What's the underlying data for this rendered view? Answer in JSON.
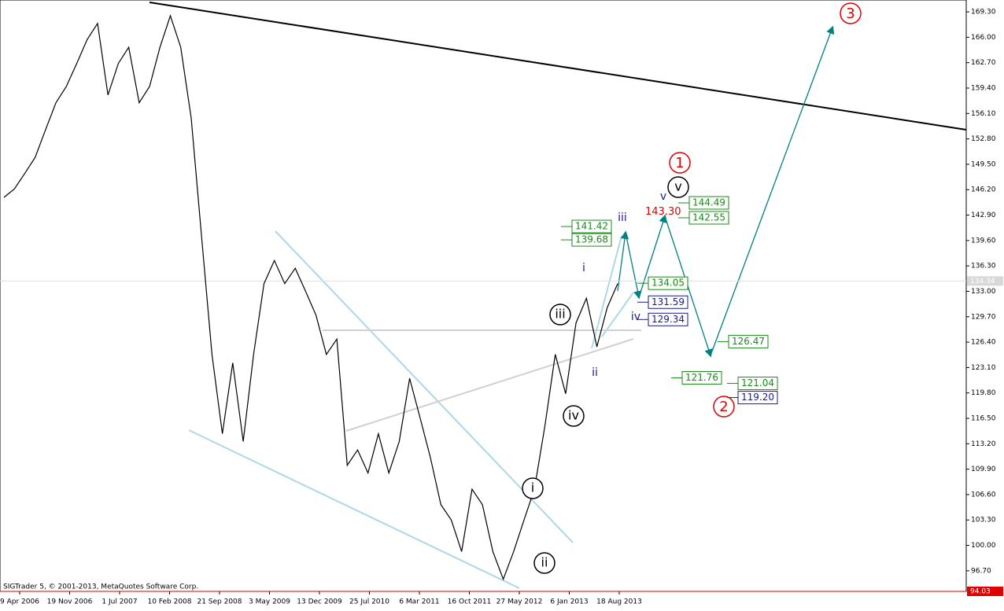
{
  "chart_data": {
    "type": "line",
    "ylim": [
      94.03,
      170.84
    ],
    "yticks": [
      {
        "value": 169.3,
        "label": "169.30"
      },
      {
        "value": 166.0,
        "label": "166.00"
      },
      {
        "value": 162.7,
        "label": "162.70"
      },
      {
        "value": 159.4,
        "label": "159.40"
      },
      {
        "value": 156.1,
        "label": "156.10"
      },
      {
        "value": 152.8,
        "label": "152.80"
      },
      {
        "value": 149.5,
        "label": "149.50"
      },
      {
        "value": 146.2,
        "label": "146.20"
      },
      {
        "value": 142.9,
        "label": "142.90"
      },
      {
        "value": 139.6,
        "label": "139.60"
      },
      {
        "value": 136.3,
        "label": "136.30"
      },
      {
        "value": 133.0,
        "label": "133.00"
      },
      {
        "value": 129.7,
        "label": "129.70"
      },
      {
        "value": 126.4,
        "label": "126.40"
      },
      {
        "value": 123.1,
        "label": "123.10"
      },
      {
        "value": 119.8,
        "label": "119.80"
      },
      {
        "value": 116.5,
        "label": "116.50"
      },
      {
        "value": 113.2,
        "label": "113.20"
      },
      {
        "value": 109.9,
        "label": "109.90"
      },
      {
        "value": 106.6,
        "label": "106.60"
      },
      {
        "value": 103.3,
        "label": "103.30"
      },
      {
        "value": 100.0,
        "label": "100.00"
      },
      {
        "value": 96.7,
        "label": "96.70"
      }
    ],
    "categories": [
      "9 Apr 2006",
      "19 Nov 2006",
      "1 Jul 2007",
      "10 Feb 2008",
      "21 Sep 2008",
      "3 May 2009",
      "13 Dec 2009",
      "25 Jul 2010",
      "6 Mar 2011",
      "16 Oct 2011",
      "27 May 2012",
      "6 Jan 2013",
      "18 Aug 2013"
    ],
    "price": {
      "color": "#000000",
      "values": [
        145.2,
        146.3,
        148.3,
        150.4,
        154.0,
        157.5,
        159.6,
        162.6,
        165.7,
        167.8,
        158.5,
        162.6,
        164.7,
        157.5,
        159.6,
        164.7,
        168.8,
        164.7,
        155.5,
        140.1,
        124.8,
        114.5,
        123.7,
        113.5,
        124.8,
        134.0,
        137.0,
        134.0,
        136.0,
        133.0,
        129.9,
        124.8,
        126.8,
        110.4,
        112.4,
        109.4,
        114.5,
        109.4,
        113.5,
        121.7,
        116.6,
        111.4,
        105.3,
        103.3,
        99.2,
        107.3,
        105.3,
        99.2,
        95.6,
        99.2,
        103.3,
        107.3,
        115.5,
        124.8,
        119.7,
        128.9,
        132.1,
        125.8,
        130.9,
        134.0
      ]
    },
    "current_price": {
      "value": 134.34,
      "label": "134.34"
    },
    "low_price": {
      "value": 94.03,
      "label": "94.03"
    },
    "price_labels": [
      {
        "value": 141.42,
        "label": "141.42",
        "color": "#1a8a1a"
      },
      {
        "value": 139.68,
        "label": "139.68",
        "color": "#1a8a1a"
      },
      {
        "value": 134.05,
        "label": "134.05",
        "color": "#1a8a1a"
      },
      {
        "value": 131.59,
        "label": "131.59",
        "color": "#1a1a8a"
      },
      {
        "value": 129.34,
        "label": "129.34",
        "color": "#1a1a8a"
      },
      {
        "value": 126.47,
        "label": "126.47",
        "color": "#1a8a1a"
      },
      {
        "value": 121.76,
        "label": "121.76",
        "color": "#1a8a1a"
      },
      {
        "value": 121.04,
        "label": "121.04",
        "color": "#1a8a1a"
      },
      {
        "value": 119.2,
        "label": "119.20",
        "color": "#1a1a8a"
      },
      {
        "value": 144.49,
        "label": "144.49",
        "color": "#1a8a1a"
      },
      {
        "value": 142.55,
        "label": "142.55",
        "color": "#1a8a1a"
      },
      {
        "value": 143.3,
        "label": "143.30",
        "color": "#e00000"
      }
    ],
    "red_circled": [
      "1",
      "2",
      "3"
    ],
    "black_circled": [
      "v",
      "iii",
      "iv",
      "i",
      "ii"
    ],
    "blue_waves": [
      "iii",
      "i",
      "ii",
      "iv",
      "v"
    ],
    "copyright": "SIGTrader 5, © 2001-2013, MetaQuotes Software Corp."
  }
}
